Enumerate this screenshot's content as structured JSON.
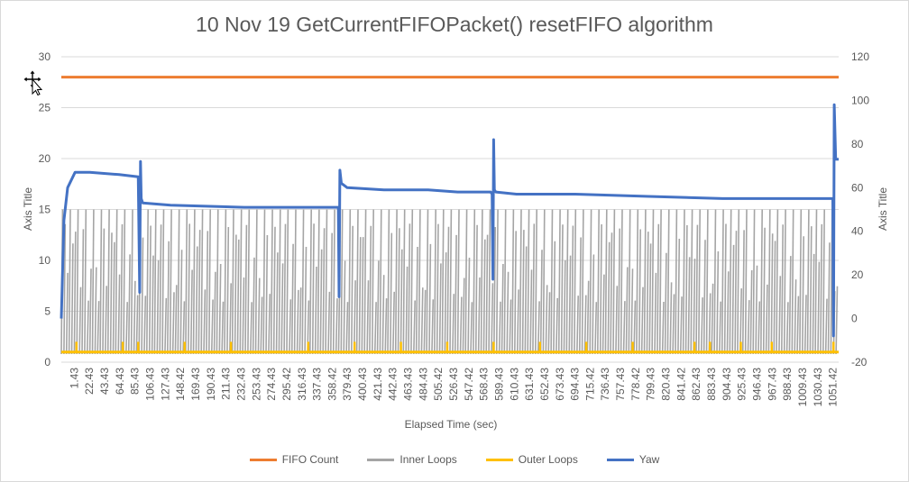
{
  "chart_data": {
    "type": "line",
    "title": "10 Nov 19 GetCurrentFIFOPacket() resetFIFO algorithm",
    "xlabel": "Elapsed Time (sec)",
    "ylabel": "Axis Title",
    "y2label": "Axis Title",
    "ylim": [
      0,
      30
    ],
    "yticks": [
      "0",
      "5",
      "10",
      "15",
      "20",
      "25",
      "30"
    ],
    "y2lim": [
      -20,
      120
    ],
    "y2ticks": [
      "-20",
      "0",
      "20",
      "40",
      "60",
      "80",
      "100",
      "120"
    ],
    "x_tick_labels": [
      "1.43",
      "22.43",
      "43.43",
      "64.43",
      "85.43",
      "106.43",
      "127.43",
      "148.42",
      "169.43",
      "190.43",
      "211.43",
      "232.43",
      "253.43",
      "274.43",
      "295.42",
      "316.43",
      "337.43",
      "358.42",
      "379.43",
      "400.43",
      "421.43",
      "442.43",
      "463.43",
      "484.43",
      "505.42",
      "526.43",
      "547.42",
      "568.43",
      "589.43",
      "610.43",
      "631.43",
      "652.43",
      "673.43",
      "694.43",
      "715.42",
      "736.43",
      "757.43",
      "778.42",
      "799.43",
      "820.43",
      "841.42",
      "862.43",
      "883.43",
      "904.43",
      "925.43",
      "946.43",
      "967.43",
      "988.43",
      "1009.43",
      "1030.43",
      "1051.42"
    ],
    "x_range": [
      1.43,
      1058
    ],
    "grid": true,
    "legend_position": "bottom",
    "series": [
      {
        "name": "FIFO Count",
        "color": "#ed7d31",
        "axis": "left",
        "style": "constant",
        "value": 28
      },
      {
        "name": "Inner Loops",
        "color": "#a5a5a5",
        "axis": "left",
        "style": "oscillating",
        "min": 1,
        "max": 15
      },
      {
        "name": "Outer Loops",
        "color": "#ffc000",
        "axis": "left",
        "style": "baseline_with_spikes",
        "value": 1,
        "spike_value": 2,
        "spike_x": [
          22,
          85,
          106,
          169,
          232,
          337,
          400,
          463,
          526,
          589,
          652,
          715,
          778,
          862,
          883,
          925,
          967,
          1051
        ]
      },
      {
        "name": "Yaw",
        "color": "#4472c4",
        "axis": "right",
        "style": "line",
        "points": [
          [
            1.43,
            0
          ],
          [
            5,
            45
          ],
          [
            10,
            60
          ],
          [
            20,
            67
          ],
          [
            40,
            67
          ],
          [
            80,
            66
          ],
          [
            106,
            65
          ],
          [
            107,
            38
          ],
          [
            108,
            12
          ],
          [
            109,
            72
          ],
          [
            110,
            55
          ],
          [
            112,
            53
          ],
          [
            150,
            52
          ],
          [
            250,
            51
          ],
          [
            330,
            51
          ],
          [
            378,
            51
          ],
          [
            379,
            10
          ],
          [
            380,
            68
          ],
          [
            382,
            62
          ],
          [
            390,
            60
          ],
          [
            440,
            59
          ],
          [
            500,
            59
          ],
          [
            540,
            58
          ],
          [
            585,
            58
          ],
          [
            587,
            57
          ],
          [
            588,
            18
          ],
          [
            589,
            82
          ],
          [
            590,
            59
          ],
          [
            592,
            58
          ],
          [
            620,
            57
          ],
          [
            700,
            57
          ],
          [
            800,
            56
          ],
          [
            900,
            55
          ],
          [
            1050,
            55
          ],
          [
            1051,
            -8
          ],
          [
            1052,
            98
          ],
          [
            1054,
            73
          ],
          [
            1058,
            73
          ]
        ]
      }
    ]
  }
}
